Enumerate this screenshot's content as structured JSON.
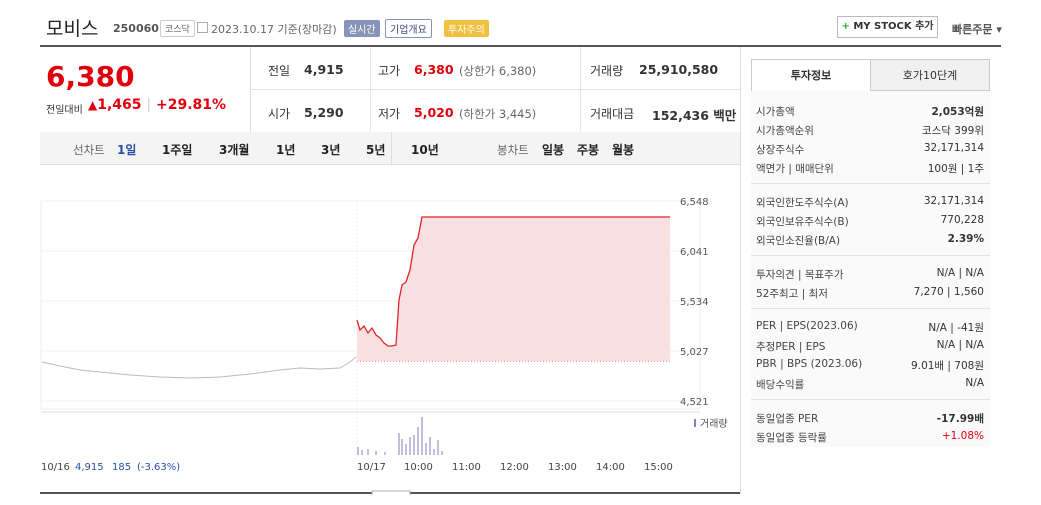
{
  "header": {
    "name": "모비스",
    "code": "250060",
    "market": "코스닥",
    "date": "2023.10.17",
    "basis": "기준(장마감)",
    "tags": [
      "실시간",
      "기업개요",
      "투자주의"
    ],
    "mystock": "MY STOCK 추가",
    "quick_order": "빠른주문"
  },
  "price": {
    "current": "6,380",
    "change_label": "전일대비",
    "change": "1,465",
    "change_rate": "+29.81%"
  },
  "stats": [
    {
      "label": "전일",
      "value": "4,915"
    },
    {
      "label": "고가",
      "value": "6,380",
      "note": "(상한가 6,380)"
    },
    {
      "label": "거래량",
      "value": "25,910,580"
    },
    {
      "label": "시가",
      "value": "5,290"
    },
    {
      "label": "저가",
      "value": "5,020",
      "note": "(하한가 3,445)"
    },
    {
      "label": "거래대금",
      "value": "152,436 백만"
    }
  ],
  "chart_tabs": {
    "line_label": "선차트",
    "line_periods": [
      "1일",
      "1주일",
      "3개월",
      "1년",
      "3년",
      "5년",
      "10년"
    ],
    "candle_label": "봉차트",
    "candle_periods": [
      "일봉",
      "주봉",
      "월봉"
    ]
  },
  "chart": {
    "y_labels": [
      "6,548",
      "6,041",
      "5,534",
      "5,027",
      "4,521"
    ],
    "volume_label": "거래량",
    "prev_date": "10/16",
    "prev_close": "4,915",
    "prev_change": "185",
    "prev_rate": "(-3.63%)",
    "x_labels": [
      "10/17",
      "10:00",
      "11:00",
      "12:00",
      "13:00",
      "14:00",
      "15:00"
    ]
  },
  "invest": {
    "tabs": [
      "투자정보",
      "호가10단계"
    ],
    "sections": [
      [
        {
          "label": "시가총액",
          "value": "2,053억원"
        },
        {
          "label": "시가총액순위",
          "value": "코스닥 399위"
        },
        {
          "label": "상장주식수",
          "value": "32,171,314"
        },
        {
          "label": "액면가 | 매매단위",
          "value": "100원 | 1주"
        }
      ],
      [
        {
          "label": "외국인한도주식수(A)",
          "value": "32,171,314"
        },
        {
          "label": "외국인보유주식수(B)",
          "value": "770,228"
        },
        {
          "label": "외국인소진율(B/A)",
          "value": "2.39%"
        }
      ],
      [
        {
          "label": "투자의견 | 목표주가",
          "value": "N/A | N/A"
        },
        {
          "label": "52주최고 | 최저",
          "value": "7,270 | 1,560"
        }
      ],
      [
        {
          "label": "PER | EPS(2023.06)",
          "value": "N/A | -41원"
        },
        {
          "label": "추정PER | EPS",
          "value": "N/A | N/A"
        },
        {
          "label": "PBR | BPS (2023.06)",
          "value": "9.01배 | 708원"
        },
        {
          "label": "배당수익률",
          "value": "N/A"
        }
      ],
      [
        {
          "label": "동일업종 PER",
          "value": "-17.99배"
        },
        {
          "label": "동일업종 등락률",
          "value": "+1.08%"
        }
      ]
    ]
  }
}
